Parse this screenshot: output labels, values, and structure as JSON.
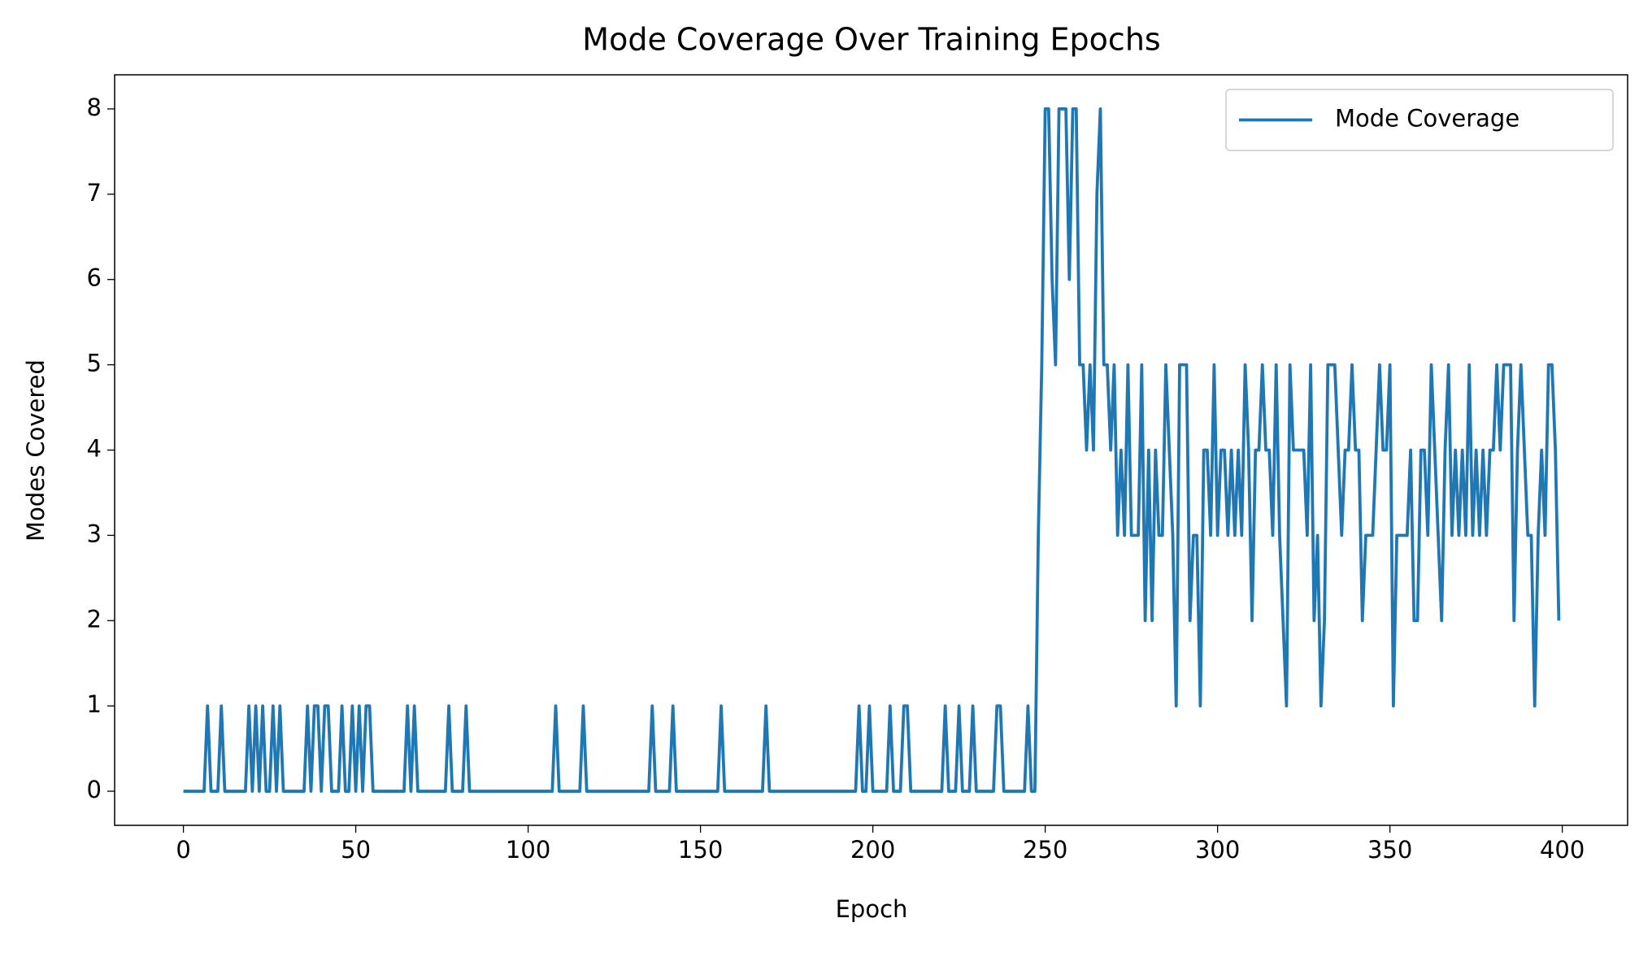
{
  "chart_data": {
    "type": "line",
    "title": "Mode Coverage Over Training Epochs",
    "x_label": "Epoch",
    "y_label": "Modes Covered",
    "x": [
      0,
      1,
      2,
      3,
      4,
      5,
      6,
      7,
      8,
      9,
      10,
      11,
      12,
      13,
      14,
      15,
      16,
      17,
      18,
      19,
      20,
      21,
      22,
      23,
      24,
      25,
      26,
      27,
      28,
      29,
      30,
      31,
      32,
      33,
      34,
      35,
      36,
      37,
      38,
      39,
      40,
      41,
      42,
      43,
      44,
      45,
      46,
      47,
      48,
      49,
      50,
      51,
      52,
      53,
      54,
      55,
      56,
      57,
      58,
      59,
      60,
      61,
      62,
      63,
      64,
      65,
      66,
      67,
      68,
      69,
      70,
      71,
      72,
      73,
      74,
      75,
      76,
      77,
      78,
      79,
      80,
      81,
      82,
      83,
      84,
      85,
      86,
      87,
      88,
      89,
      90,
      91,
      92,
      93,
      94,
      95,
      96,
      97,
      98,
      99,
      100,
      101,
      102,
      103,
      104,
      105,
      106,
      107,
      108,
      109,
      110,
      111,
      112,
      113,
      114,
      115,
      116,
      117,
      118,
      119,
      120,
      121,
      122,
      123,
      124,
      125,
      126,
      127,
      128,
      129,
      130,
      131,
      132,
      133,
      134,
      135,
      136,
      137,
      138,
      139,
      140,
      141,
      142,
      143,
      144,
      145,
      146,
      147,
      148,
      149,
      150,
      151,
      152,
      153,
      154,
      155,
      156,
      157,
      158,
      159,
      160,
      161,
      162,
      163,
      164,
      165,
      166,
      167,
      168,
      169,
      170,
      171,
      172,
      173,
      174,
      175,
      176,
      177,
      178,
      179,
      180,
      181,
      182,
      183,
      184,
      185,
      186,
      187,
      188,
      189,
      190,
      191,
      192,
      193,
      194,
      195,
      196,
      197,
      198,
      199,
      200,
      201,
      202,
      203,
      204,
      205,
      206,
      207,
      208,
      209,
      210,
      211,
      212,
      213,
      214,
      215,
      216,
      217,
      218,
      219,
      220,
      221,
      222,
      223,
      224,
      225,
      226,
      227,
      228,
      229,
      230,
      231,
      232,
      233,
      234,
      235,
      236,
      237,
      238,
      239,
      240,
      241,
      242,
      243,
      244,
      245,
      246,
      247,
      248,
      249,
      250,
      251,
      252,
      253,
      254,
      255,
      256,
      257,
      258,
      259,
      260,
      261,
      262,
      263,
      264,
      265,
      266,
      267,
      268,
      269,
      270,
      271,
      272,
      273,
      274,
      275,
      276,
      277,
      278,
      279,
      280,
      281,
      282,
      283,
      284,
      285,
      286,
      287,
      288,
      289,
      290,
      291,
      292,
      293,
      294,
      295,
      296,
      297,
      298,
      299,
      300,
      301,
      302,
      303,
      304,
      305,
      306,
      307,
      308,
      309,
      310,
      311,
      312,
      313,
      314,
      315,
      316,
      317,
      318,
      319,
      320,
      321,
      322,
      323,
      324,
      325,
      326,
      327,
      328,
      329,
      330,
      331,
      332,
      333,
      334,
      335,
      336,
      337,
      338,
      339,
      340,
      341,
      342,
      343,
      344,
      345,
      346,
      347,
      348,
      349,
      350,
      351,
      352,
      353,
      354,
      355,
      356,
      357,
      358,
      359,
      360,
      361,
      362,
      363,
      364,
      365,
      366,
      367,
      368,
      369,
      370,
      371,
      372,
      373,
      374,
      375,
      376,
      377,
      378,
      379,
      380,
      381,
      382,
      383,
      384,
      385,
      386,
      387,
      388,
      389,
      390,
      391,
      392,
      393,
      394,
      395,
      396,
      397,
      398,
      399
    ],
    "series": [
      {
        "name": "Mode Coverage",
        "color": "#1f77b4",
        "values": [
          0,
          0,
          0,
          0,
          0,
          0,
          0,
          1,
          0,
          0,
          0,
          1,
          0,
          0,
          0,
          0,
          0,
          0,
          0,
          1,
          0,
          1,
          0,
          1,
          0,
          0,
          1,
          0,
          1,
          0,
          0,
          0,
          0,
          0,
          0,
          0,
          1,
          0,
          1,
          1,
          0,
          1,
          1,
          0,
          0,
          0,
          1,
          0,
          0,
          1,
          0,
          1,
          0,
          1,
          1,
          0,
          0,
          0,
          0,
          0,
          0,
          0,
          0,
          0,
          0,
          1,
          0,
          1,
          0,
          0,
          0,
          0,
          0,
          0,
          0,
          0,
          0,
          1,
          0,
          0,
          0,
          0,
          1,
          0,
          0,
          0,
          0,
          0,
          0,
          0,
          0,
          0,
          0,
          0,
          0,
          0,
          0,
          0,
          0,
          0,
          0,
          0,
          0,
          0,
          0,
          0,
          0,
          0,
          1,
          0,
          0,
          0,
          0,
          0,
          0,
          0,
          1,
          0,
          0,
          0,
          0,
          0,
          0,
          0,
          0,
          0,
          0,
          0,
          0,
          0,
          0,
          0,
          0,
          0,
          0,
          0,
          1,
          0,
          0,
          0,
          0,
          0,
          1,
          0,
          0,
          0,
          0,
          0,
          0,
          0,
          0,
          0,
          0,
          0,
          0,
          0,
          1,
          0,
          0,
          0,
          0,
          0,
          0,
          0,
          0,
          0,
          0,
          0,
          0,
          1,
          0,
          0,
          0,
          0,
          0,
          0,
          0,
          0,
          0,
          0,
          0,
          0,
          0,
          0,
          0,
          0,
          0,
          0,
          0,
          0,
          0,
          0,
          0,
          0,
          0,
          0,
          1,
          0,
          0,
          1,
          0,
          0,
          0,
          0,
          0,
          1,
          0,
          0,
          0,
          1,
          1,
          0,
          0,
          0,
          0,
          0,
          0,
          0,
          0,
          0,
          0,
          1,
          0,
          0,
          0,
          1,
          0,
          0,
          0,
          1,
          0,
          0,
          0,
          0,
          0,
          0,
          1,
          1,
          0,
          0,
          0,
          0,
          0,
          0,
          0,
          1,
          0,
          0,
          3,
          5,
          8,
          8,
          6,
          5,
          8,
          8,
          8,
          6,
          8,
          8,
          5,
          5,
          4,
          5,
          4,
          7,
          8,
          5,
          5,
          4,
          5,
          3,
          4,
          3,
          5,
          3,
          3,
          3,
          5,
          2,
          4,
          2,
          4,
          3,
          3,
          5,
          4,
          3,
          1,
          5,
          5,
          5,
          2,
          3,
          3,
          1,
          4,
          4,
          3,
          5,
          3,
          4,
          4,
          3,
          4,
          3,
          4,
          3,
          5,
          4,
          2,
          4,
          4,
          5,
          4,
          4,
          3,
          5,
          3,
          2,
          1,
          5,
          4,
          4,
          4,
          4,
          3,
          5,
          2,
          3,
          1,
          2,
          5,
          5,
          5,
          4,
          3,
          4,
          4,
          5,
          4,
          4,
          2,
          3,
          3,
          3,
          4,
          5,
          4,
          4,
          5,
          1,
          3,
          3,
          3,
          3,
          4,
          2,
          2,
          4,
          4,
          3,
          5,
          4,
          3,
          2,
          4,
          5,
          3,
          4,
          3,
          4,
          3,
          5,
          3,
          4,
          3,
          4,
          3,
          4,
          4,
          5,
          4,
          5,
          5,
          5,
          2,
          4,
          5,
          4,
          3,
          3,
          1,
          3,
          4,
          3,
          5,
          5,
          4,
          2
        ]
      }
    ],
    "xlim": [
      -19.95,
      418.95
    ],
    "ylim": [
      -0.4,
      8.4
    ],
    "xticks": [
      0,
      50,
      100,
      150,
      200,
      250,
      300,
      350,
      400
    ],
    "yticks": [
      0,
      1,
      2,
      3,
      4,
      5,
      6,
      7,
      8
    ],
    "legend": "upper right"
  }
}
